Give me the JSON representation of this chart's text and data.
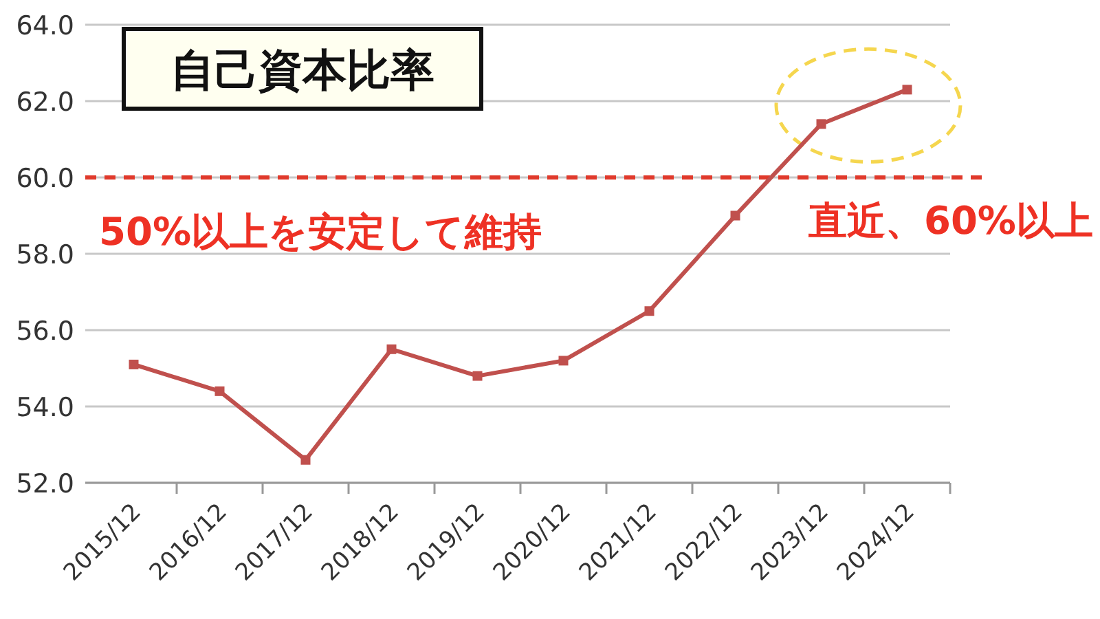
{
  "chart_data": {
    "type": "line",
    "title": "自己資本比率",
    "categories": [
      "2015/12",
      "2016/12",
      "2017/12",
      "2018/12",
      "2019/12",
      "2020/12",
      "2021/12",
      "2022/12",
      "2023/12",
      "2024/12"
    ],
    "series": [
      {
        "color": "#c0504d",
        "values": [
          55.1,
          54.4,
          52.6,
          55.5,
          54.8,
          55.2,
          56.5,
          59.0,
          61.4,
          62.3
        ]
      }
    ],
    "ylim": [
      52,
      64
    ],
    "yticks": [
      {
        "value": 52,
        "label": "52.0"
      },
      {
        "value": 54,
        "label": "54.0"
      },
      {
        "value": 56,
        "label": "56.0"
      },
      {
        "value": 58,
        "label": "58.0"
      },
      {
        "value": 60,
        "label": "60.0"
      },
      {
        "value": 62,
        "label": "62.0"
      },
      {
        "value": 64,
        "label": "64.0"
      }
    ],
    "ref_lines": [
      {
        "axis": "y",
        "value": 60,
        "color": "#e0392b",
        "line_style": "dashed"
      }
    ],
    "annotations": [
      "50%以上を安定して維持",
      "直近、60%以上"
    ],
    "grid": "y",
    "marker": "square",
    "line_style": "solid"
  }
}
